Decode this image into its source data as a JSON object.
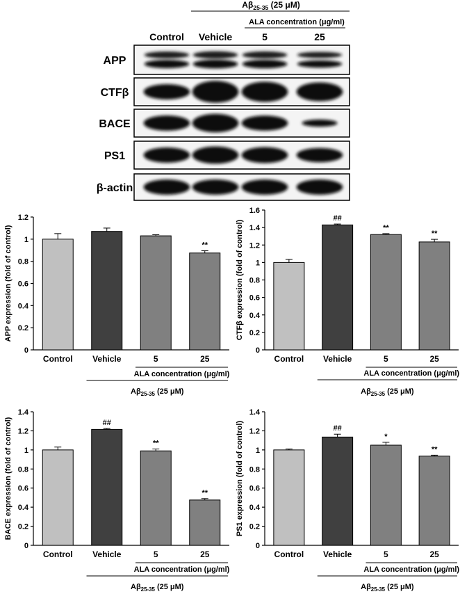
{
  "western_blot": {
    "treatment": {
      "pre": "Aβ",
      "sub": "25-35",
      "post": " (25 μM)"
    },
    "concentration_label": "ALA concentration (μg/ml)",
    "lane_labels": [
      "Control",
      "Vehicle",
      "5",
      "25"
    ],
    "rows": [
      "APP",
      "CTFβ",
      "BACE",
      "PS1",
      "β-actin"
    ],
    "relative_band_intensity": {
      "APP": [
        1.0,
        1.07,
        1.03,
        0.88
      ],
      "CTFβ": [
        1.0,
        1.43,
        1.32,
        1.23
      ],
      "BACE": [
        1.0,
        1.21,
        0.99,
        0.47
      ],
      "PS1": [
        1.0,
        1.13,
        1.05,
        0.93
      ],
      "β-actin": [
        1.0,
        1.0,
        1.0,
        1.0
      ]
    }
  },
  "chart_data": [
    {
      "type": "bar",
      "ylabel": "APP expression (fold of control)",
      "categories": [
        "Control",
        "Vehicle",
        "5",
        "25"
      ],
      "values": [
        1.0,
        1.07,
        1.03,
        0.875
      ],
      "errors": [
        0.05,
        0.03,
        0.01,
        0.02
      ],
      "annotations": [
        "",
        "",
        "",
        "**"
      ],
      "ylim": [
        0,
        1.2
      ],
      "yticks": [
        "0",
        "0.2",
        "0.4",
        "0.6",
        "0.8",
        "1",
        "1.2"
      ],
      "bar_colors": [
        "#c0c0c0",
        "#404040",
        "#808080",
        "#808080"
      ],
      "bracket_label": "ALA concentration (μg/ml)",
      "treatment": {
        "pre": "Aβ",
        "sub": "25-35",
        "post": " (25 μM)"
      }
    },
    {
      "type": "bar",
      "ylabel": "CTFβ expression (fold of control)",
      "categories": [
        "Control",
        "Vehicle",
        "5",
        "25"
      ],
      "values": [
        1.0,
        1.43,
        1.32,
        1.235
      ],
      "errors": [
        0.035,
        0.01,
        0.01,
        0.03
      ],
      "annotations": [
        "",
        "##",
        "**",
        "**"
      ],
      "ylim": [
        0,
        1.6
      ],
      "yticks": [
        "0",
        "0.2",
        "0.4",
        "0.6",
        "0.8",
        "1",
        "1.2",
        "1.4",
        "1.6"
      ],
      "bar_colors": [
        "#c0c0c0",
        "#404040",
        "#808080",
        "#808080"
      ],
      "bracket_label": "ALA concentration (μg/ml)",
      "treatment": {
        "pre": "Aβ",
        "sub": "25-35",
        "post": " (25 μM)"
      }
    },
    {
      "type": "bar",
      "ylabel": "BACE expression (fold of control)",
      "categories": [
        "Control",
        "Vehicle",
        "5",
        "25"
      ],
      "values": [
        1.0,
        1.215,
        0.99,
        0.475
      ],
      "errors": [
        0.03,
        0.01,
        0.02,
        0.015
      ],
      "annotations": [
        "",
        "##",
        "**",
        "**"
      ],
      "ylim": [
        0,
        1.4
      ],
      "yticks": [
        "0",
        "0.2",
        "0.4",
        "0.6",
        "0.8",
        "1",
        "1.2",
        "1.4"
      ],
      "bar_colors": [
        "#c0c0c0",
        "#404040",
        "#808080",
        "#808080"
      ],
      "bracket_label": "ALA concentration (μg/ml)",
      "treatment": {
        "pre": "Aβ",
        "sub": "25-35",
        "post": " (25 μM)"
      }
    },
    {
      "type": "bar",
      "ylabel": "PS1 expression (fold of control)",
      "categories": [
        "Control",
        "Vehicle",
        "5",
        "25"
      ],
      "values": [
        1.0,
        1.135,
        1.05,
        0.935
      ],
      "errors": [
        0.01,
        0.03,
        0.03,
        0.01
      ],
      "annotations": [
        "",
        "##",
        "*",
        "**"
      ],
      "ylim": [
        0,
        1.4
      ],
      "yticks": [
        "0",
        "0.2",
        "0.4",
        "0.6",
        "0.8",
        "1",
        "1.2",
        "1.4"
      ],
      "bar_colors": [
        "#c0c0c0",
        "#404040",
        "#808080",
        "#808080"
      ],
      "bracket_label": "ALA concentration (μg/ml)",
      "treatment": {
        "pre": "Aβ",
        "sub": "25-35",
        "post": " (25 μM)"
      }
    }
  ]
}
